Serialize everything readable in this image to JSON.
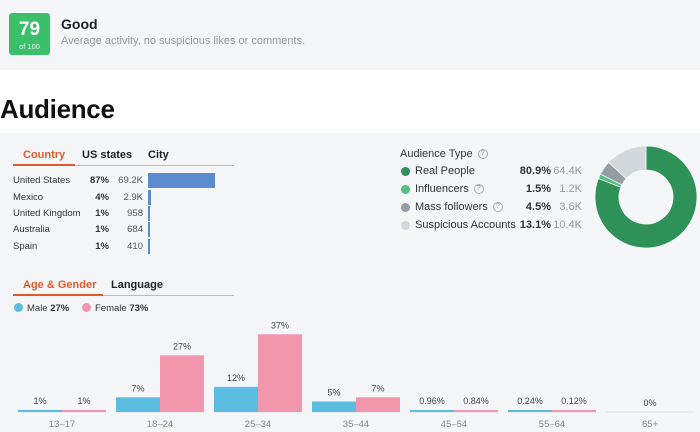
{
  "score": {
    "value": "79",
    "of": "of 100",
    "title": "Good",
    "description": "Average activity, no suspicious likes or comments."
  },
  "heading": "Audience",
  "geo_tabs": [
    "Country",
    "US states",
    "City"
  ],
  "geo_rows": [
    {
      "name": "United States",
      "pct": "87%",
      "count": "69.2K",
      "fraction": 0.87
    },
    {
      "name": "Mexico",
      "pct": "4%",
      "count": "2.9K",
      "fraction": 0.04
    },
    {
      "name": "United Kingdom",
      "pct": "1%",
      "count": "958",
      "fraction": 0.01
    },
    {
      "name": "Australia",
      "pct": "1%",
      "count": "684",
      "fraction": 0.01
    },
    {
      "name": "Spain",
      "pct": "1%",
      "count": "410",
      "fraction": 0.01
    }
  ],
  "audience_type": {
    "title": "Audience Type",
    "help_icon": "?",
    "rows": [
      {
        "label": "Real People",
        "pct": "80.9%",
        "count": "64.4K",
        "value": 80.9,
        "color": "#2e9157",
        "help": false
      },
      {
        "label": "Influencers",
        "pct": "1.5%",
        "count": "1.2K",
        "value": 1.5,
        "color": "#4fc07f",
        "help": true
      },
      {
        "label": "Mass followers",
        "pct": "4.5%",
        "count": "3.6K",
        "value": 4.5,
        "color": "#949ca6",
        "help": true
      },
      {
        "label": "Suspicious Accounts",
        "pct": "13.1%",
        "count": "10.4K",
        "value": 13.1,
        "color": "#d3d8de",
        "help": false
      }
    ]
  },
  "demo_tabs": [
    "Age & Gender",
    "Language"
  ],
  "gender_legend": [
    {
      "label": "Male",
      "pct": "27%",
      "color": "#5bbde0"
    },
    {
      "label": "Female",
      "pct": "73%",
      "color": "#f296ad"
    }
  ],
  "chart_data": {
    "type": "bar",
    "categories": [
      "13–17",
      "18–24",
      "25–34",
      "35–44",
      "45–54",
      "55–64",
      "65+"
    ],
    "series": [
      {
        "name": "Male",
        "color": "#5bbde0",
        "values": [
          1,
          7,
          12,
          5,
          0.96,
          0.24,
          null
        ],
        "labels": [
          "1%",
          "7%",
          "12%",
          "5%",
          "0.96%",
          "0.24%",
          "0%"
        ]
      },
      {
        "name": "Female",
        "color": "#f296ad",
        "values": [
          1,
          27,
          37,
          7,
          0.84,
          0.12,
          null
        ],
        "labels": [
          "1%",
          "27%",
          "37%",
          "7%",
          "0.84%",
          "0.12%",
          ""
        ]
      }
    ]
  }
}
